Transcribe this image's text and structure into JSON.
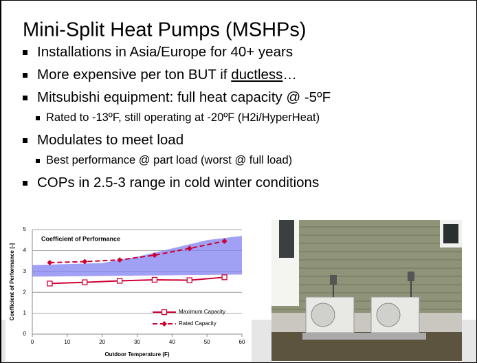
{
  "slide": {
    "title": "Mini-Split Heat Pumps (MSHPs)",
    "bullets": [
      {
        "level": 1,
        "parts": [
          "Installations in Asia/Europe for 40+ years"
        ]
      },
      {
        "level": 1,
        "parts": [
          "More expensive per ton BUT if ",
          "ductless",
          "…"
        ]
      },
      {
        "level": 1,
        "parts": [
          "Mitsubishi equipment: full heat capacity @ -5ºF"
        ]
      },
      {
        "level": 2,
        "parts": [
          "Rated to -13ºF, still operating at -20ºF (H2i/HyperHeat)"
        ]
      },
      {
        "level": 1,
        "parts": [
          "Modulates to meet load"
        ]
      },
      {
        "level": 2,
        "parts": [
          "Best performance @ part load (worst @ full load)"
        ]
      },
      {
        "level": 1,
        "parts": [
          "COPs in 2.5-3 range in cold winter conditions"
        ]
      }
    ]
  },
  "chart_data": {
    "type": "line",
    "title": "Coefficient of Performance",
    "x_label": "Outdoor Temperature (F)",
    "y_label": "Coefficient of Performance [-]",
    "x": [
      5,
      15,
      25,
      35,
      45,
      55
    ],
    "series": [
      {
        "name": "Maximum Capacity",
        "color": "#cc0033",
        "marker": "square",
        "dashed": false,
        "values": [
          2.42,
          2.48,
          2.55,
          2.6,
          2.58,
          2.72
        ]
      },
      {
        "name": "Rated Capacity",
        "color": "#cc0033",
        "marker": "diamond",
        "dashed": true,
        "values": [
          3.42,
          3.47,
          3.55,
          3.78,
          4.1,
          4.45
        ]
      }
    ],
    "xlim": [
      0,
      60
    ],
    "xticks": [
      0,
      10,
      20,
      30,
      40,
      50,
      60
    ],
    "ylim": [
      0,
      5
    ],
    "yticks": [
      0,
      1,
      2,
      3,
      4,
      5
    ],
    "grid": true
  }
}
